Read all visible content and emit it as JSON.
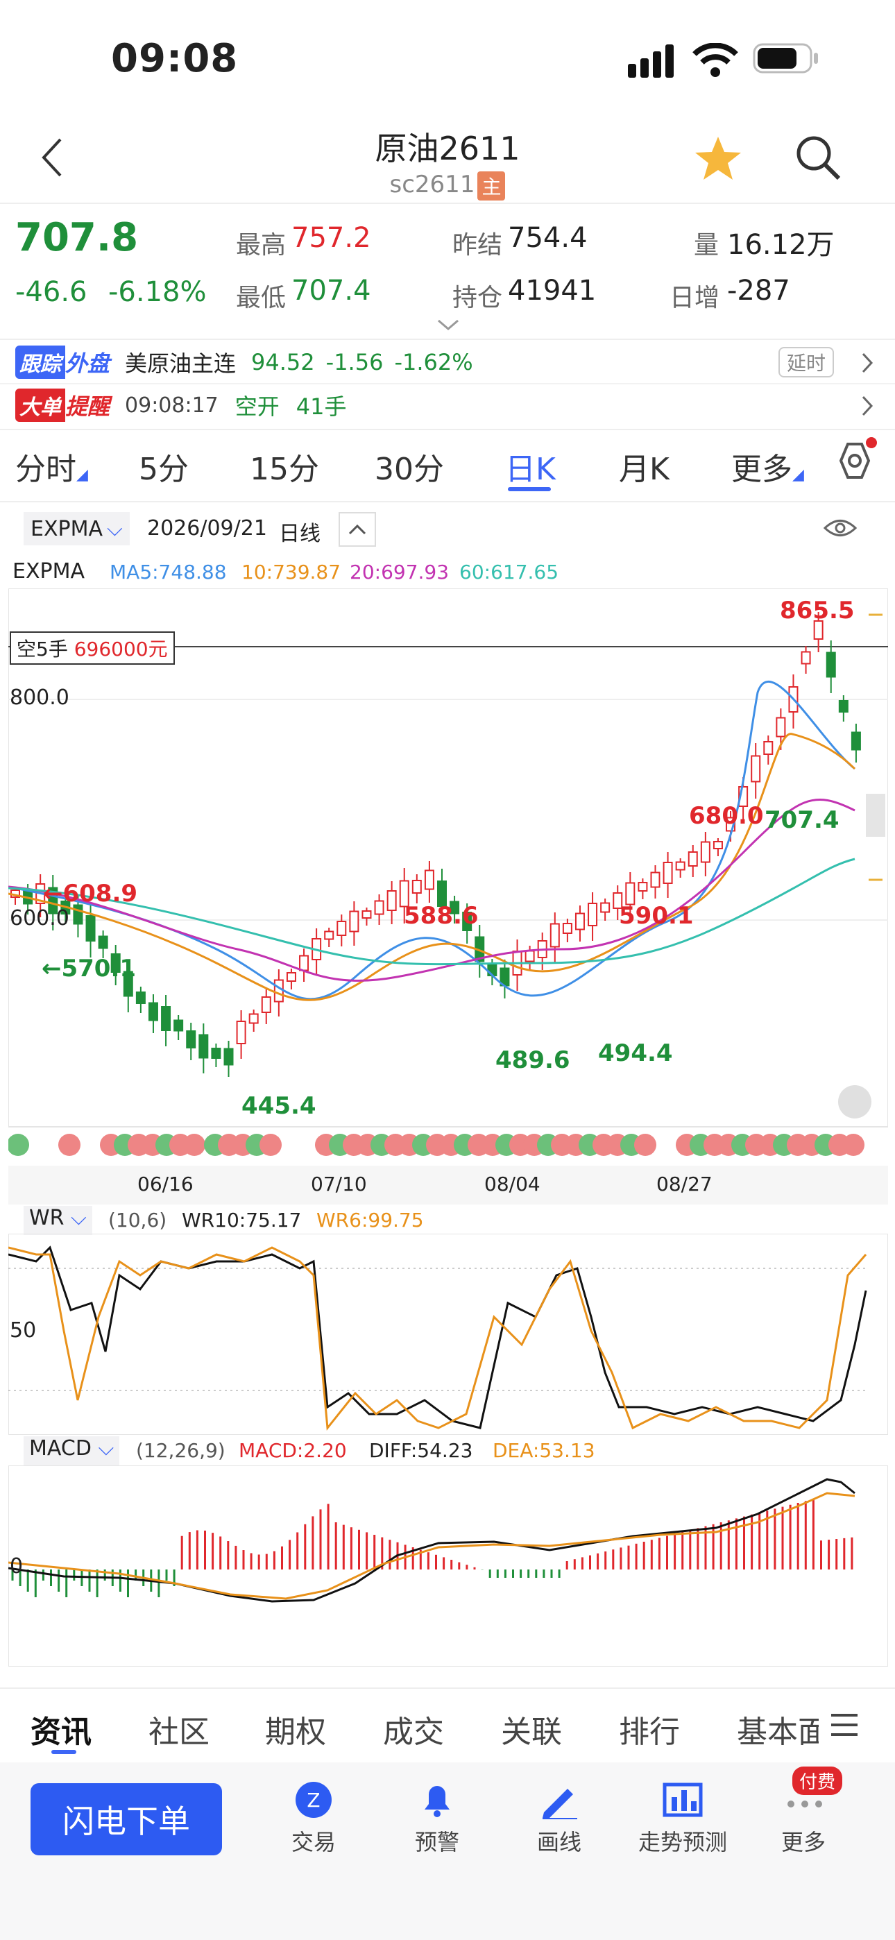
{
  "status": {
    "time": "09:08"
  },
  "header": {
    "title": "原油2611",
    "subtitle": "sc2611",
    "main_tag": "主"
  },
  "quote": {
    "price": "707.8",
    "change": "-46.6",
    "change_pct": "-6.18%",
    "high_label": "最高",
    "high": "757.2",
    "low_label": "最低",
    "low": "707.4",
    "prev_label": "昨结",
    "prev": "754.4",
    "oi_label": "持仓",
    "oi": "41941",
    "vol_label": "量",
    "vol": "16.12万",
    "daily_inc_label": "日增",
    "daily_inc": "-287"
  },
  "follow": {
    "tag1": "跟踪",
    "tag2": "外盘",
    "name": "美原油主连",
    "price": "94.52",
    "chg": "-1.56",
    "pct": "-1.62%",
    "badge": "延时"
  },
  "bigorder": {
    "tag1": "大单",
    "tag2": "提醒",
    "time": "09:08:17",
    "action": "空开",
    "qty": "41手"
  },
  "tabs": [
    "分时",
    "5分",
    "15分",
    "30分",
    "日K",
    "月K",
    "更多"
  ],
  "active_tab": "日K",
  "chart_header": {
    "indicator": "EXPMA",
    "date": "2026/09/21",
    "period": "日线"
  },
  "ma_line": {
    "name": "EXPMA",
    "ma5": "MA5:748.88",
    "ma10": "10:739.87",
    "ma20": "20:697.93",
    "ma60": "60:617.65"
  },
  "price_labels": {
    "position": "空5手",
    "position_amt": "696000元",
    "y800": "800.0",
    "y600": "600.0",
    "high_peak": "865.5",
    "p680": "680.0",
    "p7074": "707.4",
    "p6089": "←608.9",
    "p5701": "←570.1",
    "p5886": "588.6",
    "p5901": "590.1",
    "p4454": "445.4",
    "p4896": "489.6",
    "p4944": "494.4"
  },
  "x_dates": [
    "06/16",
    "07/10",
    "08/04",
    "08/27"
  ],
  "wr": {
    "name": "WR",
    "params": "(10,6)",
    "wr10": "WR10:75.17",
    "wr6": "WR6:99.75",
    "mid": "50"
  },
  "macd": {
    "name": "MACD",
    "params": "(12,26,9)",
    "macd": "MACD:2.20",
    "diff": "DIFF:54.23",
    "dea": "DEA:53.13",
    "zero": "0"
  },
  "bottom_tabs": [
    "资讯",
    "社区",
    "期权",
    "成交",
    "关联",
    "排行",
    "基本面"
  ],
  "dock": {
    "order_button": "闪电下单",
    "items": [
      "交易",
      "预警",
      "画线",
      "走势预测",
      "更多"
    ],
    "paid_badge": "付费"
  },
  "chart_data": {
    "type": "candlestick",
    "x_ticks": [
      "06/16",
      "07/10",
      "08/04",
      "08/27"
    ],
    "annotated_prices": [
      865.5,
      707.4,
      680.0,
      608.9,
      570.1,
      588.6,
      590.1,
      445.4,
      489.6,
      494.4
    ],
    "y_ticks": [
      600.0,
      800.0
    ],
    "last_close": 707.8
  }
}
